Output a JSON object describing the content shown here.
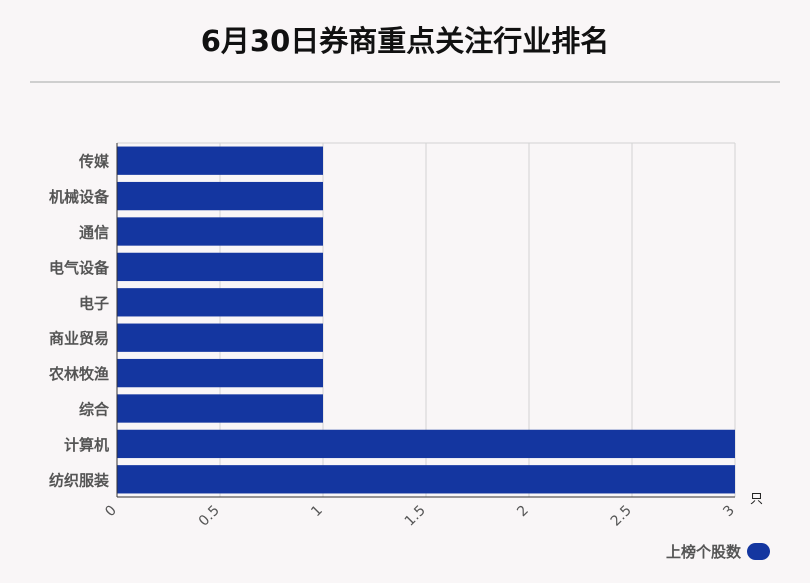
{
  "chart_data": {
    "type": "bar",
    "orientation": "horizontal",
    "title": "6月30日券商重点关注行业排名",
    "categories": [
      "传媒",
      "机械设备",
      "通信",
      "电气设备",
      "电子",
      "商业贸易",
      "农林牧渔",
      "综合",
      "计算机",
      "纺织服装"
    ],
    "series": [
      {
        "name": "上榜个股数",
        "values": [
          1,
          1,
          1,
          1,
          1,
          1,
          1,
          1,
          3,
          3
        ]
      }
    ],
    "xlim": [
      0,
      3
    ],
    "xticks": [
      "0",
      "0.5",
      "1",
      "1.5",
      "2",
      "2.5",
      "3"
    ],
    "xunit": "只",
    "grid": true,
    "legend_position": "bottom-right",
    "bar_color": "#1436a0"
  }
}
